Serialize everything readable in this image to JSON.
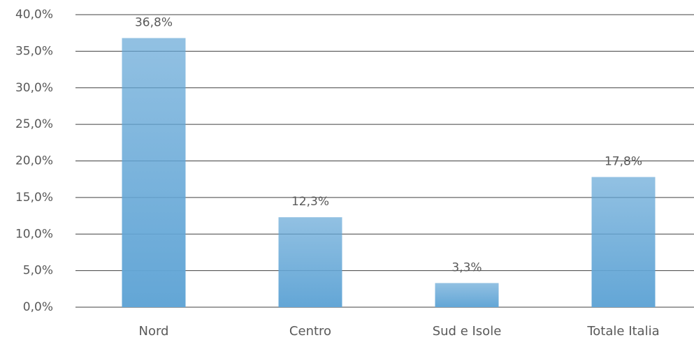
{
  "chart_data": {
    "type": "bar",
    "categories": [
      "Nord",
      "Centro",
      "Sud e Isole",
      "Totale Italia"
    ],
    "values": [
      36.8,
      12.3,
      3.3,
      17.8
    ],
    "value_labels": [
      "36,8%",
      "12,3%",
      "3,3%",
      "17,8%"
    ],
    "color": "#63a6d6",
    "ylim": [
      0,
      40
    ],
    "yticks": [
      {
        "value": 0,
        "label": "0,0%"
      },
      {
        "value": 5,
        "label": "5,0%"
      },
      {
        "value": 10,
        "label": "10,0%"
      },
      {
        "value": 15,
        "label": "15,0%"
      },
      {
        "value": 20,
        "label": "20,0%"
      },
      {
        "value": 25,
        "label": "25,0%"
      },
      {
        "value": 30,
        "label": "30,0%"
      },
      {
        "value": 35,
        "label": "35,0%"
      },
      {
        "value": 40,
        "label": "40,0%"
      }
    ],
    "grid": true
  }
}
